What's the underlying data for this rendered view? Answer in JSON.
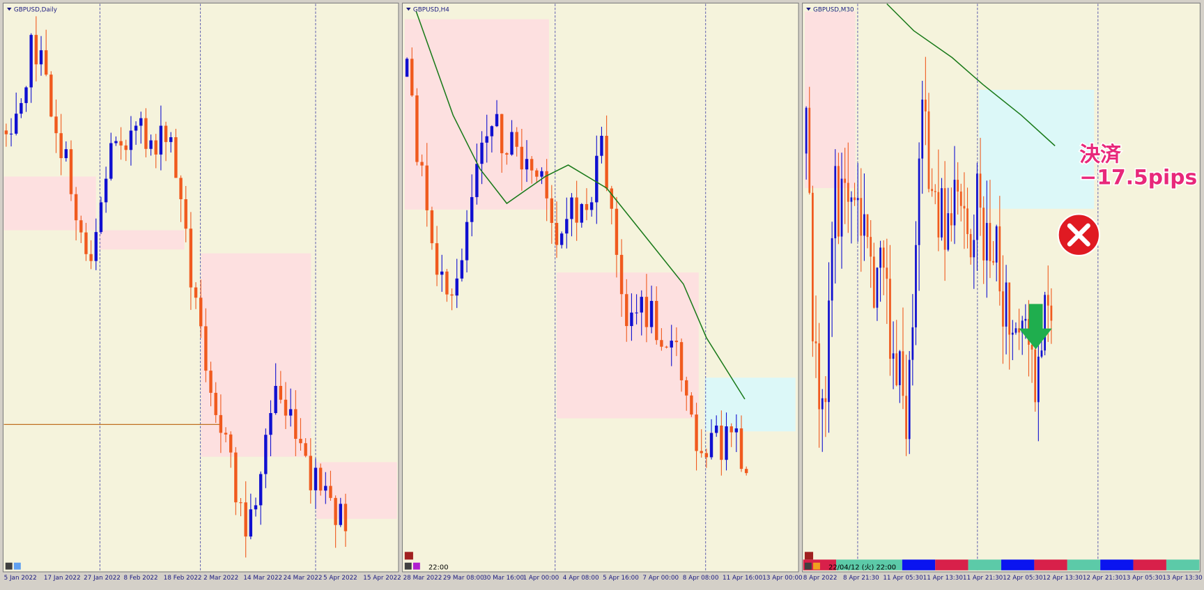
{
  "panels": [
    {
      "title": "GBPUSD,Daily",
      "x_labels": [
        "5 Jan 2022",
        "17 Jan 2022",
        "27 Jan 2022",
        "8 Feb 2022",
        "18 Feb 2022",
        "2 Mar 2022",
        "14 Mar 2022",
        "24 Mar 2022",
        "5 Apr 2022",
        "15 Apr 2022"
      ]
    },
    {
      "title": "GBPUSD,H4",
      "time_label": "22:00",
      "x_labels": [
        "28 Mar 2022",
        "29 Mar 08:00",
        "30 Mar 16:00",
        "1 Apr 00:00",
        "4 Apr 08:00",
        "5 Apr 16:00",
        "7 Apr 00:00",
        "8 Apr 08:00",
        "11 Apr 16:00",
        "13 Apr 00:00"
      ]
    },
    {
      "title": "GBPUSD,M30",
      "time_label": "22/04/12 (火) 22:00",
      "x_labels": [
        "8 Apr 2022",
        "8 Apr 21:30",
        "11 Apr 05:30",
        "11 Apr 13:30",
        "11 Apr 21:30",
        "12 Apr 05:30",
        "12 Apr 13:30",
        "12 Apr 21:30",
        "13 Apr 05:30",
        "13 Apr 13:30"
      ]
    }
  ],
  "annotation": {
    "action": "決済",
    "result": "−17.5pips"
  }
}
